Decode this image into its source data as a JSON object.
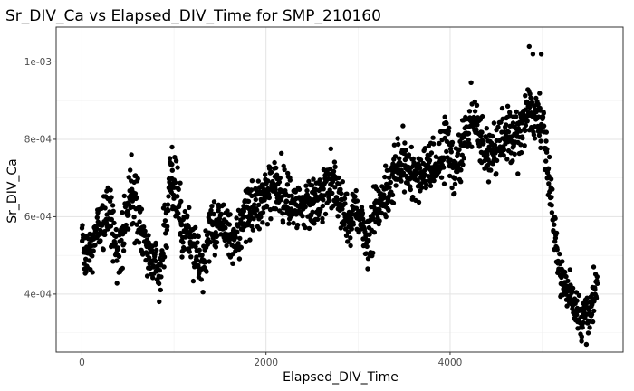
{
  "chart_data": {
    "type": "scatter",
    "title": "Sr_DIV_Ca vs Elapsed_DIV_Time for SMP_210160",
    "xlabel": "Elapsed_DIV_Time",
    "ylabel": "Sr_DIV_Ca",
    "xlim": [
      -280,
      5880
    ],
    "ylim": [
      0.00025,
      0.00109
    ],
    "x_ticks": [
      0,
      2000,
      4000
    ],
    "x_tick_labels": [
      "0",
      "2000",
      "4000"
    ],
    "y_ticks": [
      0.0004,
      0.0006,
      0.0008,
      0.001
    ],
    "y_tick_labels": [
      "4e-04",
      "6e-04",
      "8e-04",
      "1e-03"
    ],
    "grid": true,
    "legend": "none",
    "point_color": "#000000",
    "profile": [
      [
        0,
        0.00055,
        3e-05
      ],
      [
        50,
        0.0005,
        4e-05
      ],
      [
        100,
        0.00052,
        4e-05
      ],
      [
        150,
        0.00055,
        4e-05
      ],
      [
        200,
        0.00058,
        4e-05
      ],
      [
        250,
        0.0006,
        4e-05
      ],
      [
        300,
        0.0006,
        5e-05
      ],
      [
        350,
        0.00055,
        5e-05
      ],
      [
        400,
        0.0005,
        4e-05
      ],
      [
        450,
        0.00056,
        5e-05
      ],
      [
        500,
        0.00062,
        5e-05
      ],
      [
        550,
        0.00066,
        6e-05
      ],
      [
        600,
        0.00063,
        6e-05
      ],
      [
        650,
        0.00055,
        4e-05
      ],
      [
        700,
        0.00052,
        4e-05
      ],
      [
        750,
        0.0005,
        4e-05
      ],
      [
        800,
        0.00048,
        4e-05
      ],
      [
        850,
        0.00046,
        4e-05
      ],
      [
        900,
        0.00055,
        5e-05
      ],
      [
        950,
        0.00068,
        6e-05
      ],
      [
        1000,
        0.00068,
        6e-05
      ],
      [
        1050,
        0.00062,
        5e-05
      ],
      [
        1100,
        0.00058,
        5e-05
      ],
      [
        1150,
        0.00056,
        5e-05
      ],
      [
        1200,
        0.00053,
        4e-05
      ],
      [
        1250,
        0.00049,
        4e-05
      ],
      [
        1300,
        0.00046,
        4e-05
      ],
      [
        1350,
        0.00052,
        4e-05
      ],
      [
        1400,
        0.00057,
        4e-05
      ],
      [
        1450,
        0.00059,
        4e-05
      ],
      [
        1500,
        0.00059,
        4e-05
      ],
      [
        1550,
        0.00058,
        4e-05
      ],
      [
        1600,
        0.00056,
        4e-05
      ],
      [
        1650,
        0.00053,
        4e-05
      ],
      [
        1700,
        0.00056,
        4e-05
      ],
      [
        1750,
        0.00059,
        4e-05
      ],
      [
        1800,
        0.00061,
        4e-05
      ],
      [
        1850,
        0.00063,
        4e-05
      ],
      [
        1900,
        0.00064,
        4e-05
      ],
      [
        1950,
        0.00065,
        4e-05
      ],
      [
        2000,
        0.00066,
        4e-05
      ],
      [
        2050,
        0.00067,
        4e-05
      ],
      [
        2100,
        0.00068,
        4e-05
      ],
      [
        2150,
        0.00066,
        4e-05
      ],
      [
        2200,
        0.00066,
        4e-05
      ],
      [
        2250,
        0.00064,
        4e-05
      ],
      [
        2300,
        0.00064,
        4e-05
      ],
      [
        2350,
        0.00062,
        4e-05
      ],
      [
        2400,
        0.00062,
        4e-05
      ],
      [
        2450,
        0.00063,
        4e-05
      ],
      [
        2500,
        0.00064,
        4e-05
      ],
      [
        2550,
        0.00065,
        4e-05
      ],
      [
        2600,
        0.00066,
        4e-05
      ],
      [
        2650,
        0.00068,
        4e-05
      ],
      [
        2700,
        0.00069,
        4e-05
      ],
      [
        2750,
        0.00068,
        4e-05
      ],
      [
        2800,
        0.00064,
        4e-05
      ],
      [
        2850,
        0.00061,
        4e-05
      ],
      [
        2900,
        0.0006,
        4e-05
      ],
      [
        2950,
        0.00062,
        4e-05
      ],
      [
        3000,
        0.0006,
        4e-05
      ],
      [
        3050,
        0.00057,
        4e-05
      ],
      [
        3100,
        0.00054,
        4e-05
      ],
      [
        3150,
        0.00058,
        4e-05
      ],
      [
        3200,
        0.00061,
        4e-05
      ],
      [
        3250,
        0.00063,
        4e-05
      ],
      [
        3300,
        0.00066,
        4e-05
      ],
      [
        3350,
        0.00068,
        4e-05
      ],
      [
        3400,
        0.00072,
        4e-05
      ],
      [
        3450,
        0.00075,
        4e-05
      ],
      [
        3500,
        0.00074,
        4e-05
      ],
      [
        3550,
        0.00072,
        4e-05
      ],
      [
        3600,
        0.00071,
        4e-05
      ],
      [
        3650,
        0.00069,
        4e-05
      ],
      [
        3700,
        0.00072,
        4e-05
      ],
      [
        3750,
        0.00074,
        4e-05
      ],
      [
        3800,
        0.00072,
        4e-05
      ],
      [
        3850,
        0.00073,
        4e-05
      ],
      [
        3900,
        0.00076,
        4e-05
      ],
      [
        3950,
        0.0008,
        4e-05
      ],
      [
        4000,
        0.00077,
        4e-05
      ],
      [
        4050,
        0.0007,
        4e-05
      ],
      [
        4100,
        0.00074,
        4e-05
      ],
      [
        4150,
        0.0008,
        4e-05
      ],
      [
        4200,
        0.00083,
        4e-05
      ],
      [
        4250,
        0.00086,
        4e-05
      ],
      [
        4300,
        0.00085,
        4e-05
      ],
      [
        4350,
        0.0008,
        4e-05
      ],
      [
        4400,
        0.00076,
        4e-05
      ],
      [
        4450,
        0.00074,
        4e-05
      ],
      [
        4500,
        0.00076,
        4e-05
      ],
      [
        4550,
        0.00079,
        4e-05
      ],
      [
        4600,
        0.00082,
        4e-05
      ],
      [
        4650,
        0.00081,
        4e-05
      ],
      [
        4700,
        0.0008,
        4e-05
      ],
      [
        4750,
        0.00081,
        4e-05
      ],
      [
        4800,
        0.00084,
        4e-05
      ],
      [
        4850,
        0.0009,
        5e-05
      ],
      [
        4900,
        0.00086,
        4e-05
      ],
      [
        4950,
        0.00086,
        4e-05
      ],
      [
        5000,
        0.00084,
        5e-05
      ],
      [
        5050,
        0.00075,
        4e-05
      ],
      [
        5100,
        0.00063,
        4e-05
      ],
      [
        5150,
        0.00052,
        4e-05
      ],
      [
        5200,
        0.00045,
        3e-05
      ],
      [
        5250,
        0.00043,
        3e-05
      ],
      [
        5300,
        0.0004,
        3e-05
      ],
      [
        5350,
        0.00037,
        3e-05
      ],
      [
        5400,
        0.00035,
        3e-05
      ],
      [
        5450,
        0.00034,
        3e-05
      ],
      [
        5500,
        0.00035,
        3e-05
      ],
      [
        5550,
        0.00037,
        3e-05
      ],
      [
        5600,
        0.00041,
        3e-05
      ]
    ],
    "outliers": [
      [
        840,
        0.00038
      ],
      [
        980,
        0.00078
      ],
      [
        4860,
        0.00104
      ],
      [
        4900,
        0.00102
      ],
      [
        4990,
        0.00102
      ],
      [
        5560,
        0.00047
      ],
      [
        5480,
        0.00027
      ],
      [
        5430,
        0.00029
      ]
    ]
  }
}
